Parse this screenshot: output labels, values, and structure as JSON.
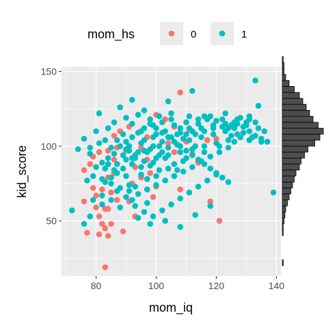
{
  "chart_data": {
    "type": "scatter",
    "xlabel": "mom_iq",
    "ylabel": "kid_score",
    "xlim": [
      68.5,
      141.5
    ],
    "ylim": [
      13,
      153
    ],
    "xticks": [
      80,
      100,
      120,
      140
    ],
    "yticks": [
      50,
      100,
      150
    ],
    "grid": true,
    "legend": {
      "title": "mom_hs",
      "placement": "top",
      "entries": [
        {
          "label": "0",
          "color": "#F8766D"
        },
        {
          "label": "1",
          "color": "#00BFC4"
        }
      ]
    },
    "series": [
      {
        "name": "0",
        "color": "#F8766D",
        "points": [
          [
            108,
            136
          ],
          [
            83,
            19
          ],
          [
            77,
            42
          ],
          [
            81,
            41
          ],
          [
            84,
            40
          ],
          [
            83,
            45
          ],
          [
            85,
            48
          ],
          [
            89,
            43
          ],
          [
            76,
            63
          ],
          [
            80,
            67
          ],
          [
            82,
            71
          ],
          [
            84,
            79
          ],
          [
            86,
            82
          ],
          [
            76,
            84
          ],
          [
            78,
            88
          ],
          [
            79,
            93
          ],
          [
            81,
            96
          ],
          [
            84,
            97
          ],
          [
            87,
            99
          ],
          [
            90,
            97
          ],
          [
            86,
            107
          ],
          [
            88,
            110
          ],
          [
            91,
            113
          ],
          [
            97,
            106
          ],
          [
            95,
            99
          ],
          [
            100,
            121
          ],
          [
            103,
            118
          ],
          [
            106,
            113
          ],
          [
            106,
            96
          ],
          [
            97,
            91
          ],
          [
            100,
            73
          ],
          [
            108,
            71
          ],
          [
            87,
            64
          ],
          [
            84,
            58
          ],
          [
            81,
            53
          ],
          [
            82,
            48
          ],
          [
            93,
            53
          ],
          [
            99,
            66
          ],
          [
            118,
            63
          ],
          [
            121,
            50
          ],
          [
            110,
            103
          ],
          [
            112,
            95
          ],
          [
            93,
            86
          ],
          [
            80,
            59
          ],
          [
            83,
            58
          ],
          [
            79,
            72
          ],
          [
            86,
            91
          ],
          [
            92,
            75
          ],
          [
            98,
            82
          ],
          [
            85,
            69
          ],
          [
            114,
            89
          ],
          [
            111,
            111
          ],
          [
            104,
            102
          ],
          [
            117,
            104
          ],
          [
            120,
            105
          ],
          [
            95,
            79
          ],
          [
            91,
            63
          ]
        ]
      },
      {
        "name": "1",
        "color": "#00BFC4",
        "points": [
          [
            133,
            144
          ],
          [
            112,
            137
          ],
          [
            134,
            127
          ],
          [
            81,
            122
          ],
          [
            92,
            131
          ],
          [
            101,
            120
          ],
          [
            105,
            122
          ],
          [
            111,
            120
          ],
          [
            116,
            120
          ],
          [
            123,
            122
          ],
          [
            128,
            119
          ],
          [
            131,
            118
          ],
          [
            133,
            116
          ],
          [
            135,
            105
          ],
          [
            137,
            103
          ],
          [
            139,
            69
          ],
          [
            72,
            57
          ],
          [
            76,
            48
          ],
          [
            78,
            53
          ],
          [
            88,
            59
          ],
          [
            85,
            64
          ],
          [
            82,
            67
          ],
          [
            92,
            64
          ],
          [
            97,
            62
          ],
          [
            91,
            74
          ],
          [
            95,
            81
          ],
          [
            98,
            87
          ],
          [
            99,
            89
          ],
          [
            101,
            94
          ],
          [
            104,
            99
          ],
          [
            107,
            101
          ],
          [
            109,
            105
          ],
          [
            113,
            108
          ],
          [
            116,
            110
          ],
          [
            119,
            112
          ],
          [
            122,
            113
          ],
          [
            125,
            114
          ],
          [
            127,
            115
          ],
          [
            129,
            113
          ],
          [
            131,
            110
          ],
          [
            133,
            107
          ],
          [
            126,
            103
          ],
          [
            124,
            99
          ],
          [
            121,
            96
          ],
          [
            118,
            93
          ],
          [
            115,
            90
          ],
          [
            112,
            86
          ],
          [
            109,
            83
          ],
          [
            106,
            80
          ],
          [
            103,
            77
          ],
          [
            100,
            74
          ],
          [
            97,
            71
          ],
          [
            94,
            68
          ],
          [
            91,
            70
          ],
          [
            88,
            72
          ],
          [
            85,
            75
          ],
          [
            82,
            78
          ],
          [
            79,
            80
          ],
          [
            83,
            85
          ],
          [
            87,
            88
          ],
          [
            90,
            91
          ],
          [
            93,
            94
          ],
          [
            96,
            97
          ],
          [
            99,
            100
          ],
          [
            102,
            103
          ],
          [
            105,
            106
          ],
          [
            108,
            109
          ],
          [
            111,
            112
          ],
          [
            114,
            115
          ],
          [
            117,
            118
          ],
          [
            120,
            117
          ],
          [
            123,
            115
          ],
          [
            126,
            112
          ],
          [
            129,
            109
          ],
          [
            132,
            106
          ],
          [
            135,
            103
          ],
          [
            88,
            100
          ],
          [
            90,
            103
          ],
          [
            92,
            106
          ],
          [
            94,
            109
          ],
          [
            96,
            112
          ],
          [
            98,
            115
          ],
          [
            100,
            112
          ],
          [
            102,
            109
          ],
          [
            104,
            106
          ],
          [
            106,
            103
          ],
          [
            108,
            100
          ],
          [
            110,
            97
          ],
          [
            112,
            94
          ],
          [
            114,
            91
          ],
          [
            116,
            88
          ],
          [
            118,
            85
          ],
          [
            120,
            82
          ],
          [
            122,
            79
          ],
          [
            124,
            76
          ],
          [
            86,
            95
          ],
          [
            84,
            92
          ],
          [
            82,
            89
          ],
          [
            80,
            86
          ],
          [
            78,
            95
          ],
          [
            76,
            105
          ],
          [
            74,
            98
          ],
          [
            80,
            110
          ],
          [
            84,
            112
          ],
          [
            86,
            116
          ],
          [
            90,
            119
          ],
          [
            94,
            121
          ],
          [
            98,
            118
          ],
          [
            102,
            116
          ],
          [
            106,
            114
          ],
          [
            110,
            116
          ],
          [
            114,
            118
          ],
          [
            118,
            120
          ],
          [
            122,
            118
          ],
          [
            126,
            116
          ],
          [
            130,
            114
          ],
          [
            134,
            112
          ],
          [
            136,
            110
          ],
          [
            128,
            106
          ],
          [
            124,
            104
          ],
          [
            120,
            102
          ],
          [
            116,
            100
          ],
          [
            112,
            98
          ],
          [
            108,
            96
          ],
          [
            104,
            94
          ],
          [
            100,
            92
          ],
          [
            96,
            90
          ],
          [
            92,
            88
          ],
          [
            89,
            85
          ],
          [
            87,
            82
          ],
          [
            85,
            79
          ],
          [
            83,
            76
          ],
          [
            87,
            70
          ],
          [
            90,
            66
          ],
          [
            93,
            60
          ],
          [
            96,
            56
          ],
          [
            99,
            53
          ],
          [
            102,
            57
          ],
          [
            105,
            61
          ],
          [
            108,
            65
          ],
          [
            111,
            69
          ],
          [
            114,
            73
          ],
          [
            117,
            77
          ],
          [
            120,
            81
          ],
          [
            94,
            52
          ],
          [
            98,
            48
          ],
          [
            103,
            50
          ],
          [
            108,
            46
          ],
          [
            113,
            54
          ],
          [
            118,
            60
          ],
          [
            101,
            84
          ],
          [
            95,
            86
          ],
          [
            90,
            80
          ],
          [
            86,
            84
          ],
          [
            91,
            97
          ],
          [
            95,
            102
          ],
          [
            99,
            106
          ],
          [
            103,
            110
          ],
          [
            107,
            108
          ],
          [
            111,
            104
          ],
          [
            115,
            106
          ],
          [
            119,
            108
          ],
          [
            123,
            110
          ],
          [
            127,
            108
          ],
          [
            131,
            104
          ],
          [
            97,
            96
          ],
          [
            93,
            92
          ],
          [
            89,
            94
          ],
          [
            85,
            99
          ],
          [
            81,
            102
          ],
          [
            78,
            99
          ],
          [
            77,
            77
          ],
          [
            79,
            64
          ],
          [
            82,
            61
          ],
          [
            100,
            80
          ],
          [
            104,
            85
          ],
          [
            110,
            92
          ],
          [
            116,
            96
          ],
          [
            92,
            115
          ],
          [
            96,
            124
          ],
          [
            104,
            130
          ],
          [
            88,
            126
          ],
          [
            95,
            110
          ],
          [
            101,
            100
          ],
          [
            87,
            104
          ],
          [
            84,
            88
          ],
          [
            106,
            88
          ],
          [
            113,
            100
          ],
          [
            125,
            107
          ],
          [
            131,
            120
          ],
          [
            109,
            90
          ],
          [
            97,
            78
          ],
          [
            93,
            73
          ],
          [
            89,
            108
          ],
          [
            83,
            104
          ],
          [
            103,
            92
          ],
          [
            107,
            84
          ],
          [
            121,
            100
          ],
          [
            127,
            118
          ],
          [
            115,
            112
          ],
          [
            99,
            114
          ],
          [
            91,
            100
          ],
          [
            105,
            118
          ],
          [
            119,
            114
          ],
          [
            92,
            92
          ],
          [
            96,
            104
          ],
          [
            100,
            108
          ],
          [
            102,
            96
          ],
          [
            110,
            108
          ],
          [
            108,
            112
          ],
          [
            112,
            110
          ],
          [
            124,
            112
          ],
          [
            130,
            116
          ],
          [
            98,
            98
          ],
          [
            94,
            96
          ],
          [
            90,
            98
          ]
        ]
      }
    ],
    "marginal_histogram": {
      "variable": "kid_score",
      "bins_start": 20,
      "bin_width": 4,
      "counts": [
        1,
        0,
        0,
        0,
        0,
        1,
        1,
        2,
        3,
        4,
        6,
        8,
        10,
        12,
        14,
        16,
        20,
        22,
        26,
        30,
        38,
        44,
        48,
        42,
        36,
        32,
        28,
        24,
        20,
        14,
        8,
        4,
        2,
        2,
        1
      ]
    }
  }
}
